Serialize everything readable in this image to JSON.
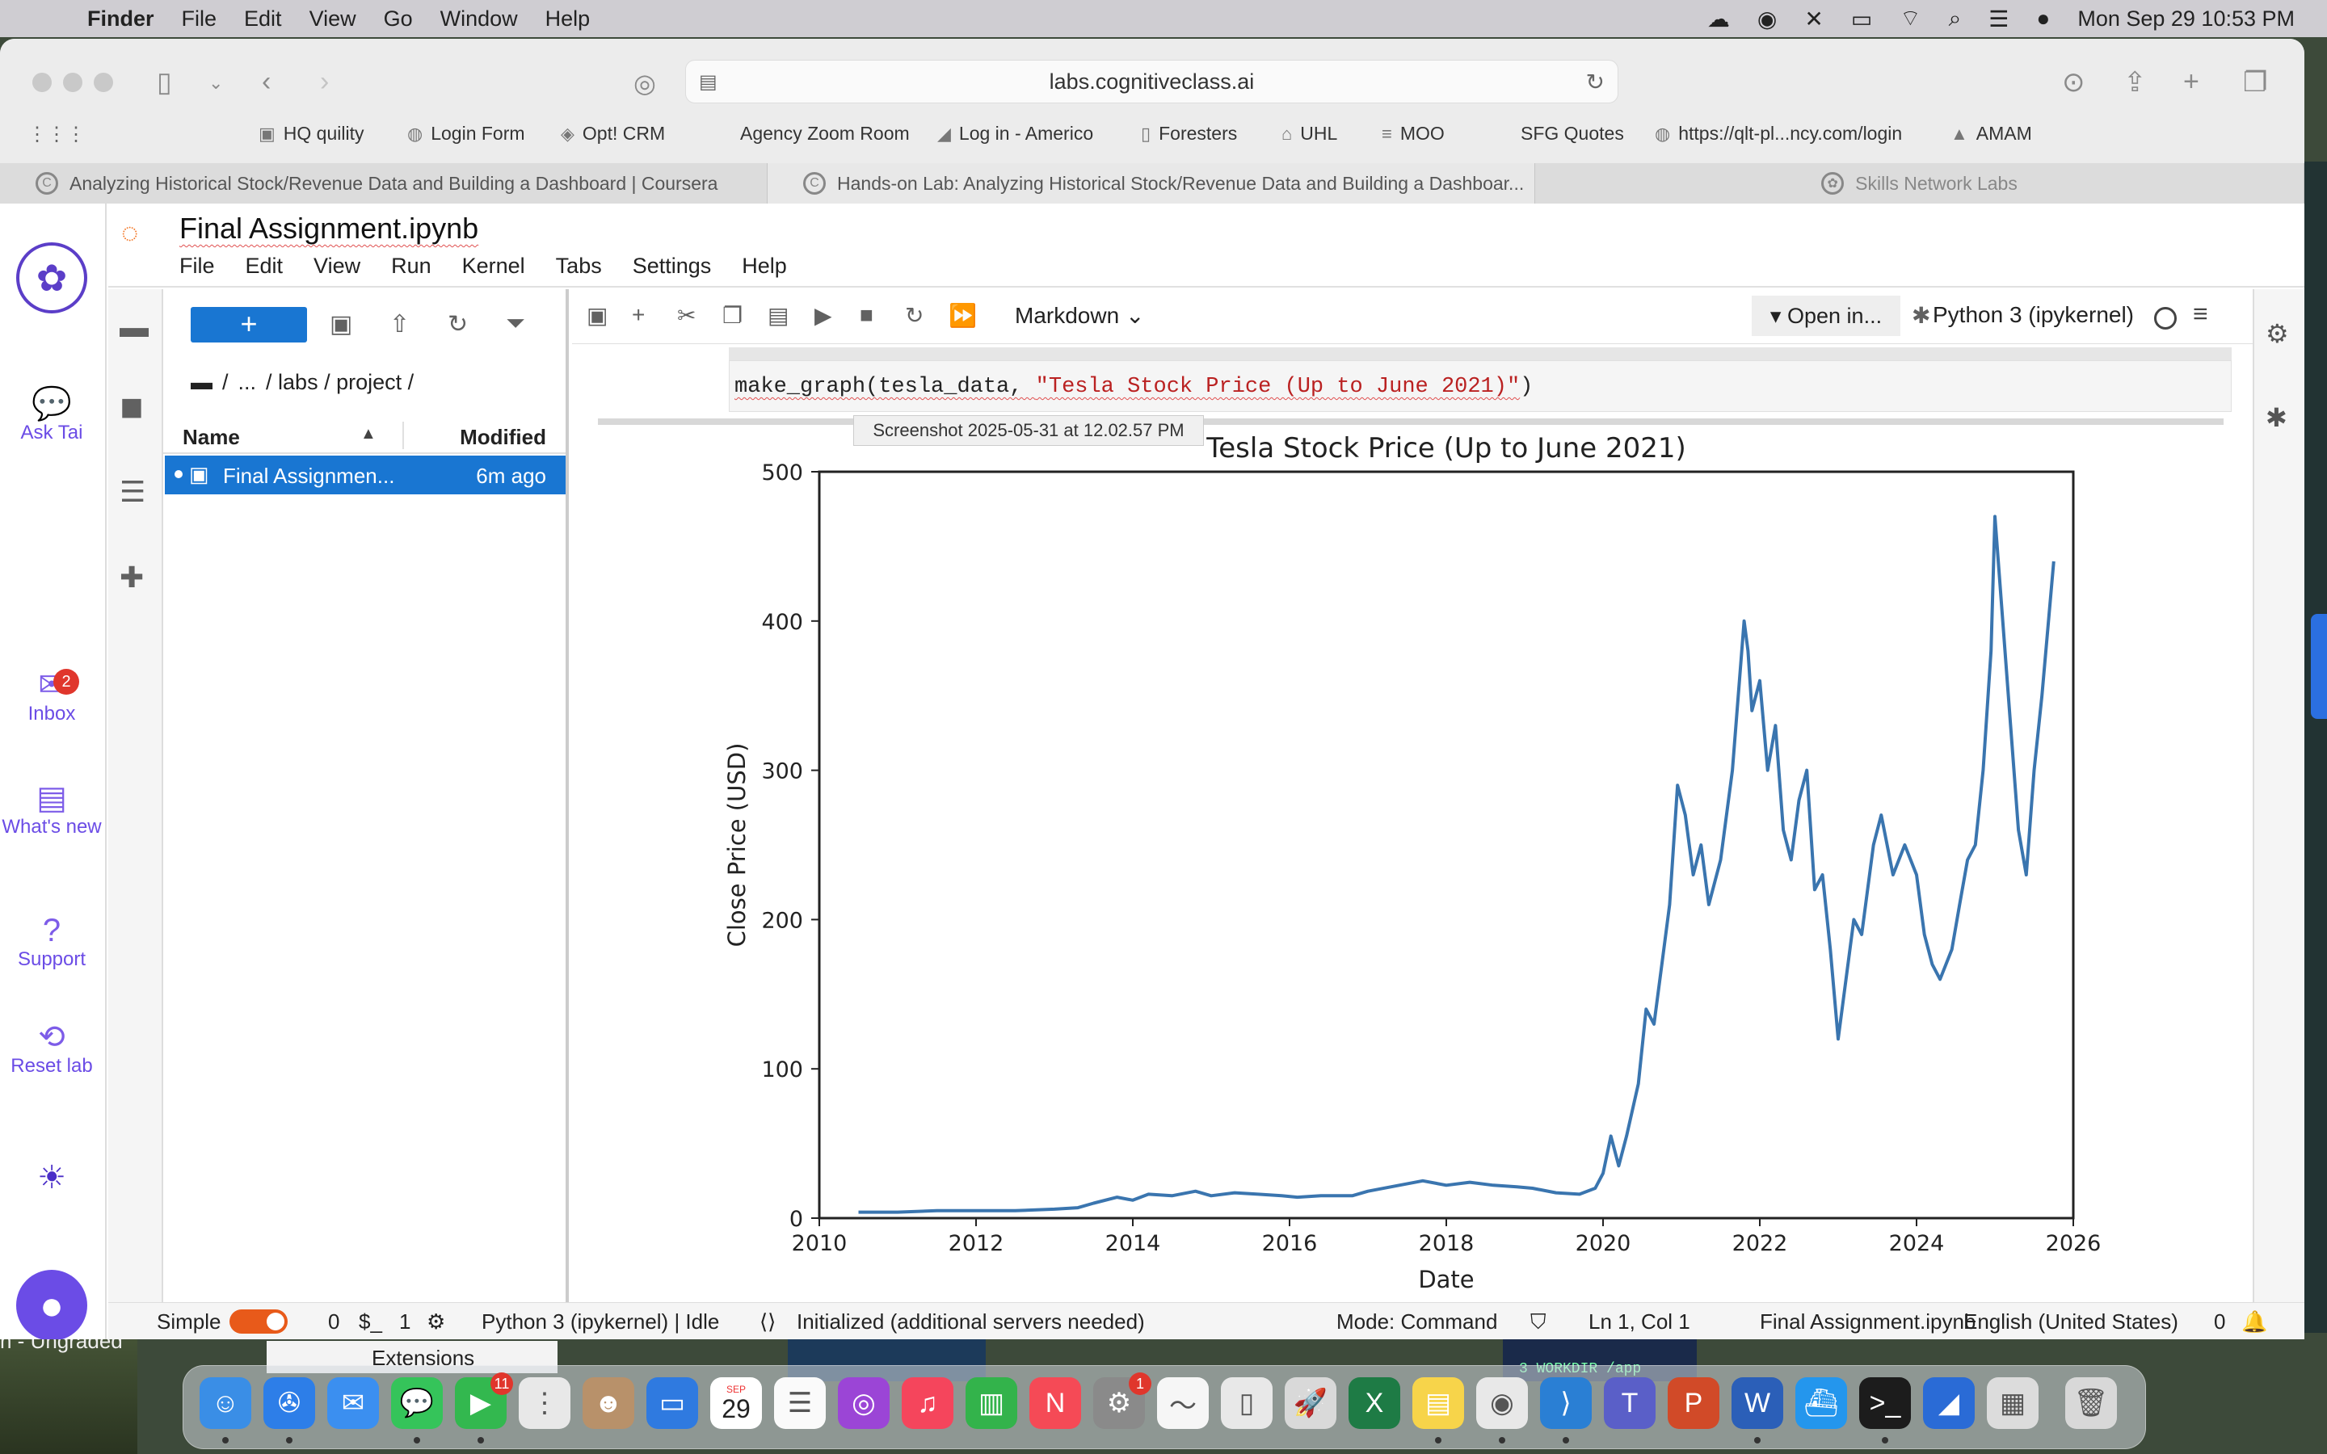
{
  "menubar": {
    "app": "Finder",
    "items": [
      "File",
      "Edit",
      "View",
      "Go",
      "Window",
      "Help"
    ],
    "clock": "Mon Sep 29  10:53 PM"
  },
  "browser": {
    "url": "labs.cognitiveclass.ai",
    "bookmarks": [
      "HQ quility",
      "Login Form",
      "Opt! CRM",
      "Agency Zoom Room",
      "Log in - Americo",
      "Foresters",
      "UHL",
      "MOO",
      "SFG Quotes",
      "https://qlt-pl...ncy.com/login",
      "AMAM"
    ],
    "tabs": [
      "Analyzing Historical Stock/Revenue Data and Building a Dashboard | Coursera",
      "Hands-on Lab: Analyzing Historical Stock/Revenue Data and Building a Dashboar...",
      "Skills Network Labs"
    ]
  },
  "rail": {
    "ask": "Ask Tai",
    "inbox": "Inbox",
    "inbox_count": "2",
    "whats_new": "What's new",
    "support": "Support",
    "reset": "Reset lab"
  },
  "jupyter": {
    "title": "Final Assignment.ipynb",
    "menu": [
      "File",
      "Edit",
      "View",
      "Run",
      "Kernel",
      "Tabs",
      "Settings",
      "Help"
    ],
    "new_label": "+",
    "breadcrumb": [
      "/",
      "...",
      "/ labs / project /"
    ],
    "col_name": "Name",
    "col_modified": "Modified",
    "file_name": "Final Assignmen...",
    "file_modified": "6m ago",
    "cell_type": "Markdown",
    "open_in": "Open in...",
    "kernel": "Python 3 (ipykernel)",
    "code_prefix": "make_graph(tesla_data, ",
    "code_string": "\"Tesla Stock Price (Up to June 2021)\"",
    "code_suffix": ")",
    "tooltip": "Screenshot 2025-05-31 at 12.02.57 PM"
  },
  "status": {
    "mode_label": "Simple",
    "terminals": "0",
    "kernels": "1",
    "kernel_state": "Python 3 (ipykernel) | Idle",
    "init": "Initialized (additional servers needed)",
    "mode": "Mode: Command",
    "cursor": "Ln 1, Col 1",
    "file": "Final Assignment.ipynb",
    "language": "English (United States)",
    "notifications": "0"
  },
  "desktop": {
    "label": "n - Ungraded",
    "extensions": "Extensions",
    "terminal_snippet": "3  WORKDIR /app",
    "calendar_month": "SEP",
    "calendar_day": "29",
    "facetime_badge": "11",
    "settings_badge": "1"
  },
  "chart_data": {
    "type": "line",
    "title": "Tesla Stock Price (Up to June 2021)",
    "xlabel": "Date",
    "ylabel": "Close Price (USD)",
    "xlim": [
      2010,
      2026
    ],
    "ylim": [
      0,
      500
    ],
    "xticks": [
      "2010",
      "2012",
      "2014",
      "2016",
      "2018",
      "2020",
      "2022",
      "2024",
      "2026"
    ],
    "yticks": [
      "0",
      "100",
      "200",
      "300",
      "400",
      "500"
    ],
    "color": "#3a75af",
    "series": [
      {
        "x": [
          2010.5,
          2011.0,
          2011.5,
          2012.0,
          2012.5,
          2013.0,
          2013.3,
          2013.5,
          2013.8,
          2014.0,
          2014.2,
          2014.5,
          2014.8,
          2015.0,
          2015.3,
          2015.6,
          2015.9,
          2016.1,
          2016.4,
          2016.8,
          2017.0,
          2017.4,
          2017.7,
          2018.0,
          2018.3,
          2018.6,
          2018.9,
          2019.1,
          2019.4,
          2019.7,
          2019.9,
          2020.0,
          2020.1,
          2020.2,
          2020.3,
          2020.45,
          2020.55,
          2020.65,
          2020.75,
          2020.85,
          2020.95,
          2021.05,
          2021.15,
          2021.25,
          2021.35,
          2021.5,
          2021.65,
          2021.8,
          2021.85,
          2021.9,
          2022.0,
          2022.1,
          2022.2,
          2022.3,
          2022.4,
          2022.5,
          2022.6,
          2022.7,
          2022.8,
          2022.9,
          2023.0,
          2023.1,
          2023.2,
          2023.3,
          2023.45,
          2023.55,
          2023.7,
          2023.85,
          2024.0,
          2024.1,
          2024.2,
          2024.3,
          2024.45,
          2024.55,
          2024.65,
          2024.75,
          2024.85,
          2024.95,
          2025.0,
          2025.1,
          2025.2,
          2025.3,
          2025.4,
          2025.5,
          2025.6,
          2025.75
        ],
        "y": [
          4,
          4,
          5,
          5,
          5,
          6,
          7,
          10,
          14,
          12,
          16,
          15,
          18,
          15,
          17,
          16,
          15,
          14,
          15,
          15,
          18,
          22,
          25,
          22,
          24,
          22,
          21,
          20,
          17,
          16,
          20,
          30,
          55,
          35,
          55,
          90,
          140,
          130,
          170,
          210,
          290,
          270,
          230,
          250,
          210,
          240,
          300,
          400,
          380,
          340,
          360,
          300,
          330,
          260,
          240,
          280,
          300,
          220,
          230,
          180,
          120,
          160,
          200,
          190,
          250,
          270,
          230,
          250,
          230,
          190,
          170,
          160,
          180,
          210,
          240,
          250,
          300,
          380,
          470,
          400,
          330,
          260,
          230,
          300,
          350,
          440
        ]
      }
    ]
  }
}
